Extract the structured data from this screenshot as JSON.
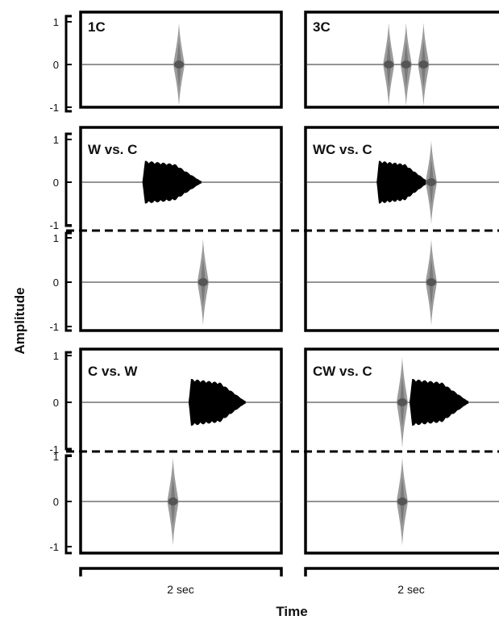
{
  "chart_data": {
    "type": "line",
    "ylabel": "Amplitude",
    "xlabel": "Time",
    "scale_bar_label": "2 sec",
    "y_ticks": [
      "1",
      "0",
      "-1"
    ],
    "ylim": [
      -1,
      1
    ],
    "colors": {
      "whistle": "#000000",
      "click": "#8a8a8a",
      "click_core": "#555555"
    },
    "panels": [
      {
        "id": "1C",
        "label": "1C",
        "column": 0,
        "row": 0,
        "tracks": [
          {
            "events": [
              {
                "type": "click",
                "t": 0.49
              }
            ]
          }
        ]
      },
      {
        "id": "3C",
        "label": "3C",
        "column": 1,
        "row": 0,
        "tracks": [
          {
            "events": [
              {
                "type": "click",
                "t": 0.43
              },
              {
                "type": "click",
                "t": 0.52
              },
              {
                "type": "click",
                "t": 0.61
              }
            ]
          }
        ]
      },
      {
        "id": "W-vs-C",
        "label": "W vs. C",
        "column": 0,
        "row": 1,
        "tracks": [
          {
            "events": [
              {
                "type": "whistle",
                "t0": 0.31,
                "t1": 0.6
              }
            ]
          },
          {
            "events": [
              {
                "type": "click",
                "t": 0.61
              }
            ]
          }
        ]
      },
      {
        "id": "WC-vs-C",
        "label": "WC vs. C",
        "column": 1,
        "row": 1,
        "tracks": [
          {
            "events": [
              {
                "type": "whistle",
                "t0": 0.37,
                "t1": 0.63
              },
              {
                "type": "click",
                "t": 0.65
              }
            ]
          },
          {
            "events": [
              {
                "type": "click",
                "t": 0.65
              }
            ]
          }
        ]
      },
      {
        "id": "C-vs-W",
        "label": "C vs. W",
        "column": 0,
        "row": 2,
        "tracks": [
          {
            "events": [
              {
                "type": "whistle",
                "t0": 0.54,
                "t1": 0.82
              }
            ]
          },
          {
            "events": [
              {
                "type": "click",
                "t": 0.46
              }
            ]
          }
        ]
      },
      {
        "id": "CW-vs-C",
        "label": "CW vs. C",
        "column": 1,
        "row": 2,
        "tracks": [
          {
            "events": [
              {
                "type": "click",
                "t": 0.5
              },
              {
                "type": "whistle",
                "t0": 0.54,
                "t1": 0.84
              }
            ]
          },
          {
            "events": [
              {
                "type": "click",
                "t": 0.5
              }
            ]
          }
        ]
      }
    ]
  }
}
